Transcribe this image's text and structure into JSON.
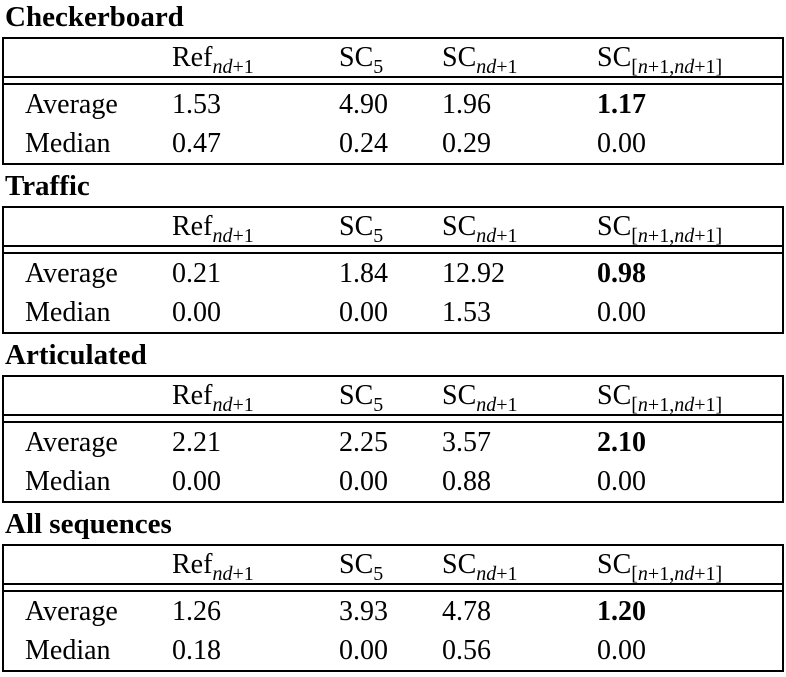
{
  "columns": [
    {
      "base": "Ref",
      "sub": "nd+1"
    },
    {
      "base": "SC",
      "sub": "5"
    },
    {
      "base": "SC",
      "sub": "nd+1"
    },
    {
      "base": "SC",
      "sub": "[n+1,nd+1]"
    }
  ],
  "row_labels": {
    "average": "Average",
    "median": "Median"
  },
  "sections": [
    {
      "title": "Checkerboard",
      "rows": [
        {
          "label": "Average",
          "values": [
            "1.53",
            "4.90",
            "1.96",
            "1.17"
          ],
          "bold_value_index": 3
        },
        {
          "label": "Median",
          "values": [
            "0.47",
            "0.24",
            "0.29",
            "0.00"
          ],
          "bold_value_index": null
        }
      ]
    },
    {
      "title": "Traffic",
      "rows": [
        {
          "label": "Average",
          "values": [
            "0.21",
            "1.84",
            "12.92",
            "0.98"
          ],
          "bold_value_index": 3
        },
        {
          "label": "Median",
          "values": [
            "0.00",
            "0.00",
            "1.53",
            "0.00"
          ],
          "bold_value_index": null
        }
      ]
    },
    {
      "title": "Articulated",
      "rows": [
        {
          "label": "Average",
          "values": [
            "2.21",
            "2.25",
            "3.57",
            "2.10"
          ],
          "bold_value_index": 3
        },
        {
          "label": "Median",
          "values": [
            "0.00",
            "0.00",
            "0.88",
            "0.00"
          ],
          "bold_value_index": null
        }
      ]
    },
    {
      "title": "All sequences",
      "rows": [
        {
          "label": "Average",
          "values": [
            "1.26",
            "3.93",
            "4.78",
            "1.20"
          ],
          "bold_value_index": 3
        },
        {
          "label": "Median",
          "values": [
            "0.18",
            "0.00",
            "0.56",
            "0.00"
          ],
          "bold_value_index": null
        }
      ]
    }
  ],
  "style": {
    "text_color": "#000000",
    "background_color": "#ffffff",
    "rule_color": "#000000"
  }
}
